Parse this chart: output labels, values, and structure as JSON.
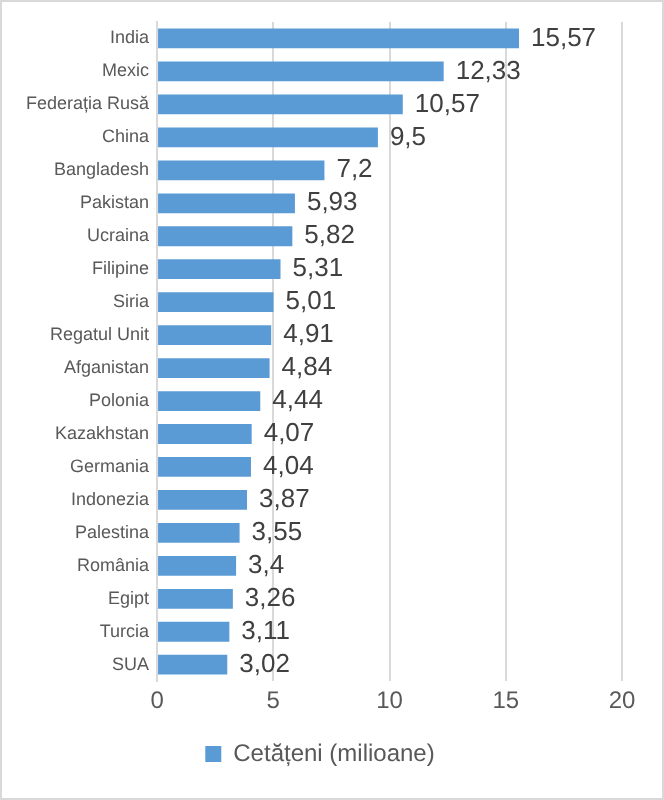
{
  "chart_data": {
    "type": "bar",
    "orientation": "horizontal",
    "categories": [
      "India",
      "Mexic",
      "Federația Rusă",
      "China",
      "Bangladesh",
      "Pakistan",
      "Ucraina",
      "Filipine",
      "Siria",
      "Regatul Unit",
      "Afganistan",
      "Polonia",
      "Kazakhstan",
      "Germania",
      "Indonezia",
      "Palestina",
      "România",
      "Egipt",
      "Turcia",
      "SUA"
    ],
    "series": [
      {
        "name": "Cetățeni (milioane)",
        "color": "#5b9bd5",
        "values": [
          15.57,
          12.33,
          10.57,
          9.5,
          7.2,
          5.93,
          5.82,
          5.31,
          5.01,
          4.91,
          4.84,
          4.44,
          4.07,
          4.04,
          3.87,
          3.55,
          3.4,
          3.26,
          3.11,
          3.02
        ],
        "value_labels": [
          "15,57",
          "12,33",
          "10,57",
          "9,5",
          "7,2",
          "5,93",
          "5,82",
          "5,31",
          "5,01",
          "4,91",
          "4,84",
          "4,44",
          "4,07",
          "4,04",
          "3,87",
          "3,55",
          "3,4",
          "3,26",
          "3,11",
          "3,02"
        ]
      }
    ],
    "xlim": [
      0,
      20
    ],
    "xticks": [
      0,
      5,
      10,
      15,
      20
    ],
    "grid": "x",
    "legend": "bottom"
  }
}
